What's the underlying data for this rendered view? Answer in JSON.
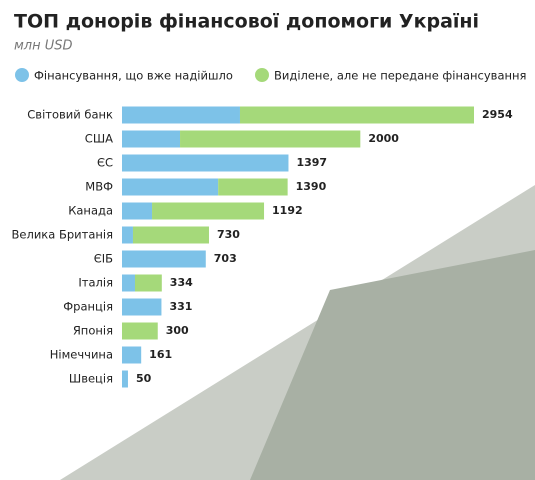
{
  "chart_data": {
    "type": "stacked-bar-horizontal",
    "title": "ТОП донорів фінансової допомоги Україні",
    "subtitle": "млн USD",
    "categories": [
      "Світовий банк",
      "США",
      "ЄС",
      "МВФ",
      "Канада",
      "Велика Британія",
      "ЄІБ",
      "Італія",
      "Франція",
      "Японія",
      "Німеччина",
      "Швеція"
    ],
    "series": [
      {
        "name": "Фінансування, що вже надійшло",
        "color": "#7dc2e8",
        "values": [
          990,
          487,
          1397,
          807,
          252,
          92,
          703,
          109,
          331,
          0,
          161,
          50
        ]
      },
      {
        "name": "Виділене, але не передане фінансування",
        "color": "#a5d97a",
        "values": [
          1964,
          1513,
          0,
          583,
          940,
          638,
          0,
          225,
          0,
          300,
          0,
          0
        ]
      }
    ],
    "totals": [
      2954,
      2000,
      1397,
      1390,
      1192,
      730,
      703,
      334,
      331,
      300,
      161,
      50
    ]
  }
}
